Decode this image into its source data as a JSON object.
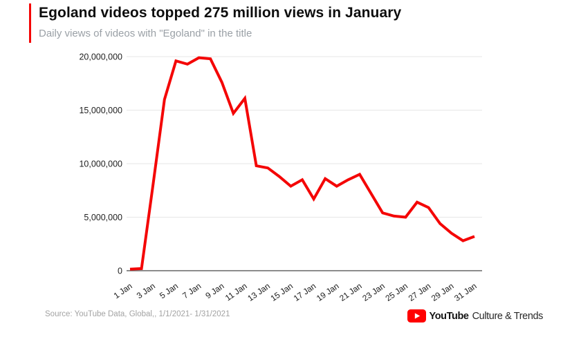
{
  "header": {
    "title": "Egoland videos topped 275 million views in January",
    "subtitle": "Daily views of videos with \"Egoland\" in the title"
  },
  "chart_data": {
    "type": "line",
    "title": "Egoland videos topped 275 million views in January",
    "subtitle": "Daily views of videos with \"Egoland\" in the title",
    "x": [
      "1 Jan",
      "2 Jan",
      "3 Jan",
      "4 Jan",
      "5 Jan",
      "6 Jan",
      "7 Jan",
      "8 Jan",
      "9 Jan",
      "10 Jan",
      "11 Jan",
      "12 Jan",
      "13 Jan",
      "14 Jan",
      "15 Jan",
      "16 Jan",
      "17 Jan",
      "18 Jan",
      "19 Jan",
      "20 Jan",
      "21 Jan",
      "22 Jan",
      "23 Jan",
      "24 Jan",
      "25 Jan",
      "26 Jan",
      "27 Jan",
      "28 Jan",
      "29 Jan",
      "30 Jan",
      "31 Jan"
    ],
    "x_label_every": 2,
    "values": [
      150000,
      200000,
      8000000,
      16000000,
      19600000,
      19300000,
      19900000,
      19800000,
      17600000,
      14700000,
      16100000,
      9800000,
      9600000,
      8800000,
      7900000,
      8500000,
      6700000,
      8600000,
      7900000,
      8500000,
      9000000,
      7200000,
      5400000,
      5100000,
      5000000,
      6400000,
      5900000,
      4400000,
      3500000,
      2800000,
      3200000
    ],
    "ylim": [
      0,
      20000000
    ],
    "yticks": [
      0,
      5000000,
      10000000,
      15000000,
      20000000
    ],
    "ytick_labels": [
      "0",
      "5,000,000",
      "10,000,000",
      "15,000,000",
      "20,000,000"
    ],
    "line_color": "#f40505",
    "grid_color": "#e6e6e6",
    "axis_color": "#666666",
    "tick_text_color": "#212121",
    "grid": true,
    "legend": false
  },
  "footer": {
    "source": "Source: YouTube Data, Global,, 1/1/2021- 1/31/2021",
    "logo": {
      "brand": "YouTube",
      "suffix": "Culture & Trends",
      "icon": "youtube-play-icon",
      "icon_color": "#ff0000"
    }
  },
  "colors": {
    "accent": "#f40505",
    "background": "#ffffff"
  }
}
